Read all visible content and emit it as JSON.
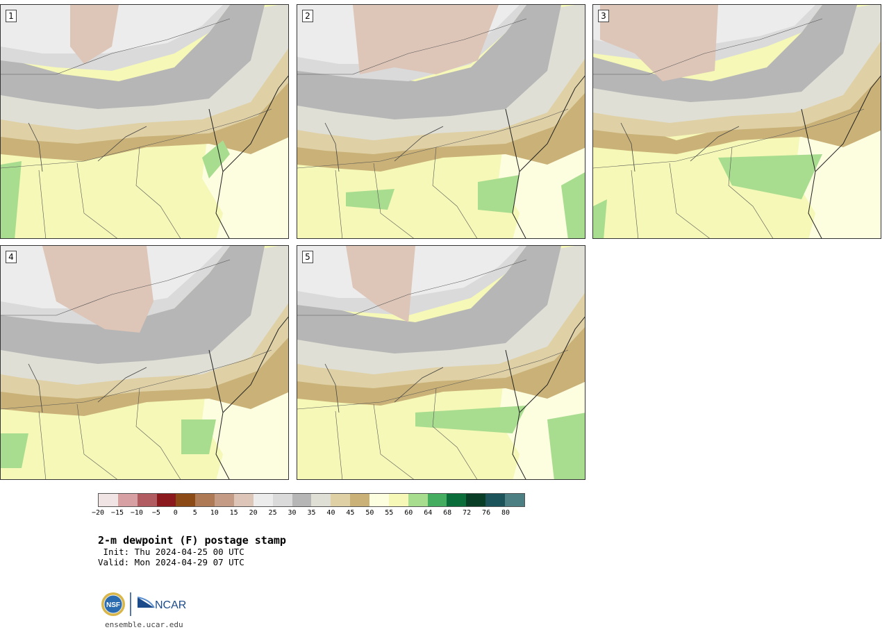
{
  "panels": [
    {
      "label": "1"
    },
    {
      "label": "2"
    },
    {
      "label": "3"
    },
    {
      "label": "4"
    },
    {
      "label": "5"
    }
  ],
  "colors": {
    "lt20": "#f0e4e4",
    "m15": "#d7a1a4",
    "m10": "#b05c60",
    "m5": "#8b1a1f",
    "c0": "#8c4a17",
    "c5": "#ad7a55",
    "c10": "#c49b85",
    "c15": "#ddc5b8",
    "c20": "#ececec",
    "c25": "#dadada",
    "c30": "#b6b6b6",
    "c35": "#dfdfd6",
    "c40": "#dfd1a5",
    "c45": "#c9b177",
    "c50": "#fdfde0",
    "c55": "#f5f8b6",
    "c60": "#a8dd8f",
    "c64": "#45ad5f",
    "c68": "#0b6e3a",
    "c72": "#0a3d26",
    "c76": "#1c525a",
    "c80": "#4c7f84"
  },
  "colorbar": {
    "swatches": [
      "#f0e4e4",
      "#d7a1a4",
      "#b05c60",
      "#8b1a1f",
      "#8c4a17",
      "#ad7a55",
      "#c49b85",
      "#ddc5b8",
      "#ececec",
      "#dadada",
      "#b6b6b6",
      "#dfdfd6",
      "#dfd1a5",
      "#c9b177",
      "#fdfde0",
      "#f5f8b6",
      "#a8dd8f",
      "#45ad5f",
      "#0b6e3a",
      "#0a3d26",
      "#1c525a",
      "#4c7f84"
    ],
    "ticks": [
      "−20",
      "−15",
      "−10",
      "−5",
      "0",
      "5",
      "10",
      "15",
      "20",
      "25",
      "30",
      "35",
      "40",
      "45",
      "50",
      "55",
      "60",
      "64",
      "68",
      "72",
      "76",
      "80"
    ]
  },
  "title": "2-m dewpoint (F) postage stamp",
  "init": " Init: Thu 2024-04-25 00 UTC",
  "valid": "Valid: Mon 2024-04-29 07 UTC",
  "logos": {
    "nsf": "NSF",
    "ncar": "NCAR"
  },
  "site": "ensemble.ucar.edu"
}
